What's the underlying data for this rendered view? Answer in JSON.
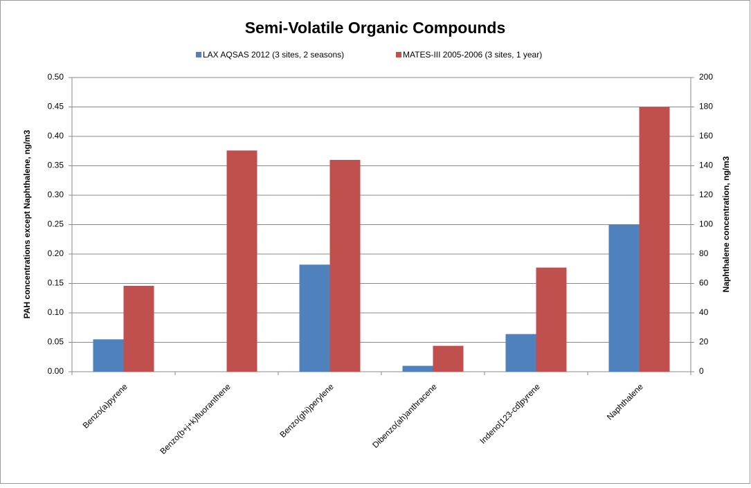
{
  "chart_data": {
    "type": "bar",
    "title": "Semi-Volatile Organic Compounds",
    "y_label": "PAH concentrations except Naphthalene, ng/m3",
    "y2_label": "Naphthalene concentration, ng/m3",
    "categories": [
      "Benzo(a)pyrene",
      "Benzo(b+j+k)fluoranthene",
      "Benzo(ghi)perylene",
      "Dibenzo(ah)anthracene",
      "Indeno[123-cd]pyrene",
      "Naphthalene"
    ],
    "series": [
      {
        "name": "LAX AQSAS 2012 (3 sites, 2 seasons)",
        "color": "#4f81bd",
        "values": [
          0.055,
          null,
          0.182,
          0.01,
          0.064,
          100
        ],
        "axis": [
          "y",
          "y",
          "y",
          "y",
          "y",
          "y2"
        ]
      },
      {
        "name": "MATES-III 2005-2006 (3 sites, 1 year)",
        "color": "#c0504d",
        "values": [
          0.146,
          0.376,
          0.36,
          0.044,
          0.177,
          180
        ],
        "axis": [
          "y",
          "y",
          "y",
          "y",
          "y",
          "y2"
        ]
      }
    ],
    "ylim": [
      0,
      0.5
    ],
    "yticks": [
      {
        "value": 0,
        "label": "0.00"
      },
      {
        "value": 0.05,
        "label": "0.05"
      },
      {
        "value": 0.1,
        "label": "0.10"
      },
      {
        "value": 0.15,
        "label": "0.15"
      },
      {
        "value": 0.2,
        "label": "0.20"
      },
      {
        "value": 0.25,
        "label": "0.25"
      },
      {
        "value": 0.3,
        "label": "0.30"
      },
      {
        "value": 0.35,
        "label": "0.35"
      },
      {
        "value": 0.4,
        "label": "0.40"
      },
      {
        "value": 0.45,
        "label": "0.45"
      },
      {
        "value": 0.5,
        "label": "0.50"
      }
    ],
    "y2lim": [
      0,
      200
    ],
    "y2ticks": [
      0,
      20,
      40,
      60,
      80,
      100,
      120,
      140,
      160,
      180,
      200
    ],
    "grid": true,
    "legend": "top"
  }
}
